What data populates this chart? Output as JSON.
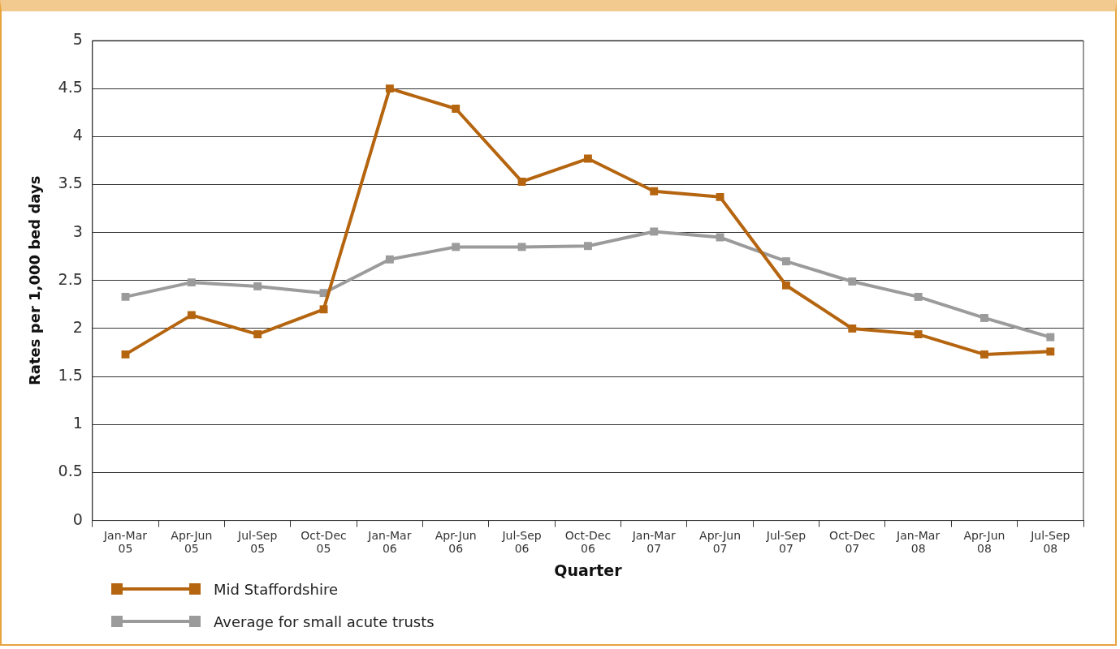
{
  "chart_data": {
    "type": "line",
    "xlabel": "Quarter",
    "ylabel": "Rates per 1,000 bed days",
    "categories": [
      "Jan-Mar 05",
      "Apr-Jun 05",
      "Jul-Sep 05",
      "Oct-Dec 05",
      "Jan-Mar 06",
      "Apr-Jun 06",
      "Jul-Sep 06",
      "Oct-Dec 06",
      "Jan-Mar 07",
      "Apr-Jun 07",
      "Jul-Sep 07",
      "Oct-Dec 07",
      "Jan-Mar 08",
      "Apr-Jun 08",
      "Jul-Sep 08"
    ],
    "series": [
      {
        "name": "Mid Staffordshire",
        "color": "#b5650f",
        "values": [
          1.73,
          2.14,
          1.94,
          2.2,
          4.5,
          4.29,
          3.53,
          3.77,
          3.43,
          3.37,
          2.45,
          2.0,
          1.94,
          1.73,
          1.76
        ]
      },
      {
        "name": "Average for small acute trusts",
        "color": "#9b9b9b",
        "values": [
          2.33,
          2.48,
          2.44,
          2.37,
          2.72,
          2.85,
          2.85,
          2.86,
          3.01,
          2.95,
          2.7,
          2.49,
          2.33,
          2.11,
          1.91
        ]
      }
    ],
    "ylim": [
      0,
      5
    ],
    "yticks": [
      0,
      0.5,
      1,
      1.5,
      2,
      2.5,
      3,
      3.5,
      4,
      4.5,
      5
    ],
    "grid": "y",
    "legend": "bottom left",
    "marker": "square",
    "line_style": "solid"
  }
}
